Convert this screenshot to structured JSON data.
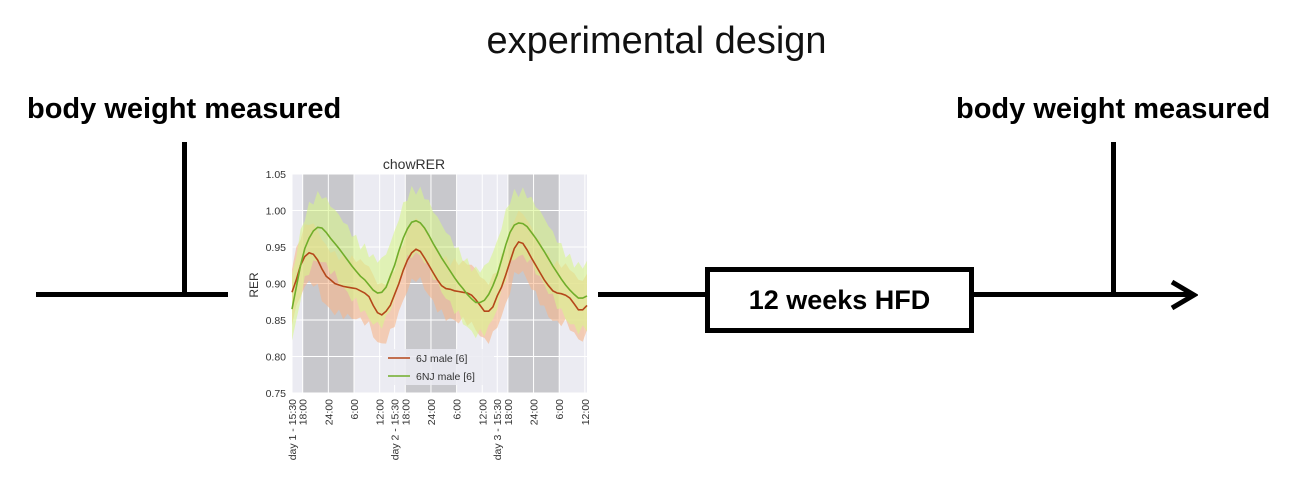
{
  "title": "experimental design",
  "left_label": "body weight measured",
  "right_label": "body weight measured",
  "box_label": "12 weeks HFD",
  "colors": {
    "line_6j": "#b5471a",
    "line_6nj": "#70ad2a",
    "fill_6j": "#f7b58a",
    "fill_6nj": "#d9f58c",
    "dark_band": "#c8c8cc",
    "light_band": "#ebebf2"
  },
  "chart_data": {
    "type": "line",
    "title": "chowRER",
    "ylabel": "RER",
    "xlabel": "",
    "ylim": [
      0.75,
      1.05
    ],
    "yticks": [
      "1.05",
      "1.00",
      "0.95",
      "0.90",
      "0.85",
      "0.80",
      "0.75"
    ],
    "ytick_values": [
      1.05,
      1.0,
      0.95,
      0.9,
      0.85,
      0.8,
      0.75
    ],
    "xlim_hours": [
      0,
      69
    ],
    "xticks": [
      {
        "h": 0,
        "label": "day 1 - 15:30"
      },
      {
        "h": 2.5,
        "label": "18:00"
      },
      {
        "h": 8.5,
        "label": "24:00"
      },
      {
        "h": 14.5,
        "label": "6:00"
      },
      {
        "h": 20.5,
        "label": "12:00"
      },
      {
        "h": 24,
        "label": "day 2 - 15:30"
      },
      {
        "h": 26.5,
        "label": "18:00"
      },
      {
        "h": 32.5,
        "label": "24:00"
      },
      {
        "h": 38.5,
        "label": "6:00"
      },
      {
        "h": 44.5,
        "label": "12:00"
      },
      {
        "h": 48,
        "label": "day 3 - 15:30"
      },
      {
        "h": 50.5,
        "label": "18:00"
      },
      {
        "h": 56.5,
        "label": "24:00"
      },
      {
        "h": 62.5,
        "label": "6:00"
      },
      {
        "h": 68.5,
        "label": "12:00"
      }
    ],
    "dark_periods": [
      [
        2.5,
        14.5
      ],
      [
        26.5,
        38.5
      ],
      [
        50.5,
        62.5
      ]
    ],
    "grid": true,
    "legend_position": "lower center",
    "x": [
      0,
      1,
      2,
      3,
      4,
      5,
      6,
      7,
      8,
      9,
      10,
      11,
      12,
      13,
      14,
      15,
      16,
      17,
      18,
      19,
      20,
      21,
      22,
      23,
      24,
      25,
      26,
      27,
      28,
      29,
      30,
      31,
      32,
      33,
      34,
      35,
      36,
      37,
      38,
      39,
      40,
      41,
      42,
      43,
      44,
      45,
      46,
      47,
      48,
      49,
      50,
      51,
      52,
      53,
      54,
      55,
      56,
      57,
      58,
      59,
      60,
      61,
      62,
      63,
      64,
      65,
      66,
      67,
      68,
      69
    ],
    "series": [
      {
        "name": "6J male  [6]",
        "color": "#b5471a",
        "values": [
          0.888,
          0.905,
          0.925,
          0.937,
          0.942,
          0.94,
          0.932,
          0.92,
          0.91,
          0.905,
          0.9,
          0.898,
          0.896,
          0.895,
          0.894,
          0.893,
          0.89,
          0.887,
          0.882,
          0.87,
          0.86,
          0.857,
          0.862,
          0.87,
          0.885,
          0.9,
          0.918,
          0.932,
          0.942,
          0.947,
          0.944,
          0.935,
          0.925,
          0.915,
          0.905,
          0.897,
          0.893,
          0.892,
          0.89,
          0.889,
          0.888,
          0.887,
          0.884,
          0.878,
          0.87,
          0.862,
          0.862,
          0.868,
          0.883,
          0.895,
          0.912,
          0.93,
          0.948,
          0.957,
          0.955,
          0.946,
          0.935,
          0.925,
          0.915,
          0.905,
          0.897,
          0.89,
          0.887,
          0.886,
          0.884,
          0.88,
          0.872,
          0.864,
          0.864,
          0.87
        ]
      },
      {
        "name": "6NJ male  [6]",
        "color": "#70ad2a",
        "values": [
          0.865,
          0.895,
          0.925,
          0.948,
          0.962,
          0.972,
          0.977,
          0.976,
          0.97,
          0.962,
          0.955,
          0.948,
          0.94,
          0.932,
          0.924,
          0.917,
          0.91,
          0.905,
          0.898,
          0.891,
          0.887,
          0.888,
          0.895,
          0.91,
          0.925,
          0.945,
          0.962,
          0.975,
          0.984,
          0.986,
          0.983,
          0.976,
          0.966,
          0.955,
          0.945,
          0.935,
          0.926,
          0.917,
          0.908,
          0.9,
          0.893,
          0.885,
          0.879,
          0.874,
          0.874,
          0.877,
          0.885,
          0.897,
          0.912,
          0.932,
          0.953,
          0.97,
          0.98,
          0.983,
          0.982,
          0.978,
          0.97,
          0.962,
          0.953,
          0.944,
          0.934,
          0.924,
          0.915,
          0.906,
          0.898,
          0.891,
          0.885,
          0.88,
          0.88,
          0.883
        ]
      }
    ]
  }
}
